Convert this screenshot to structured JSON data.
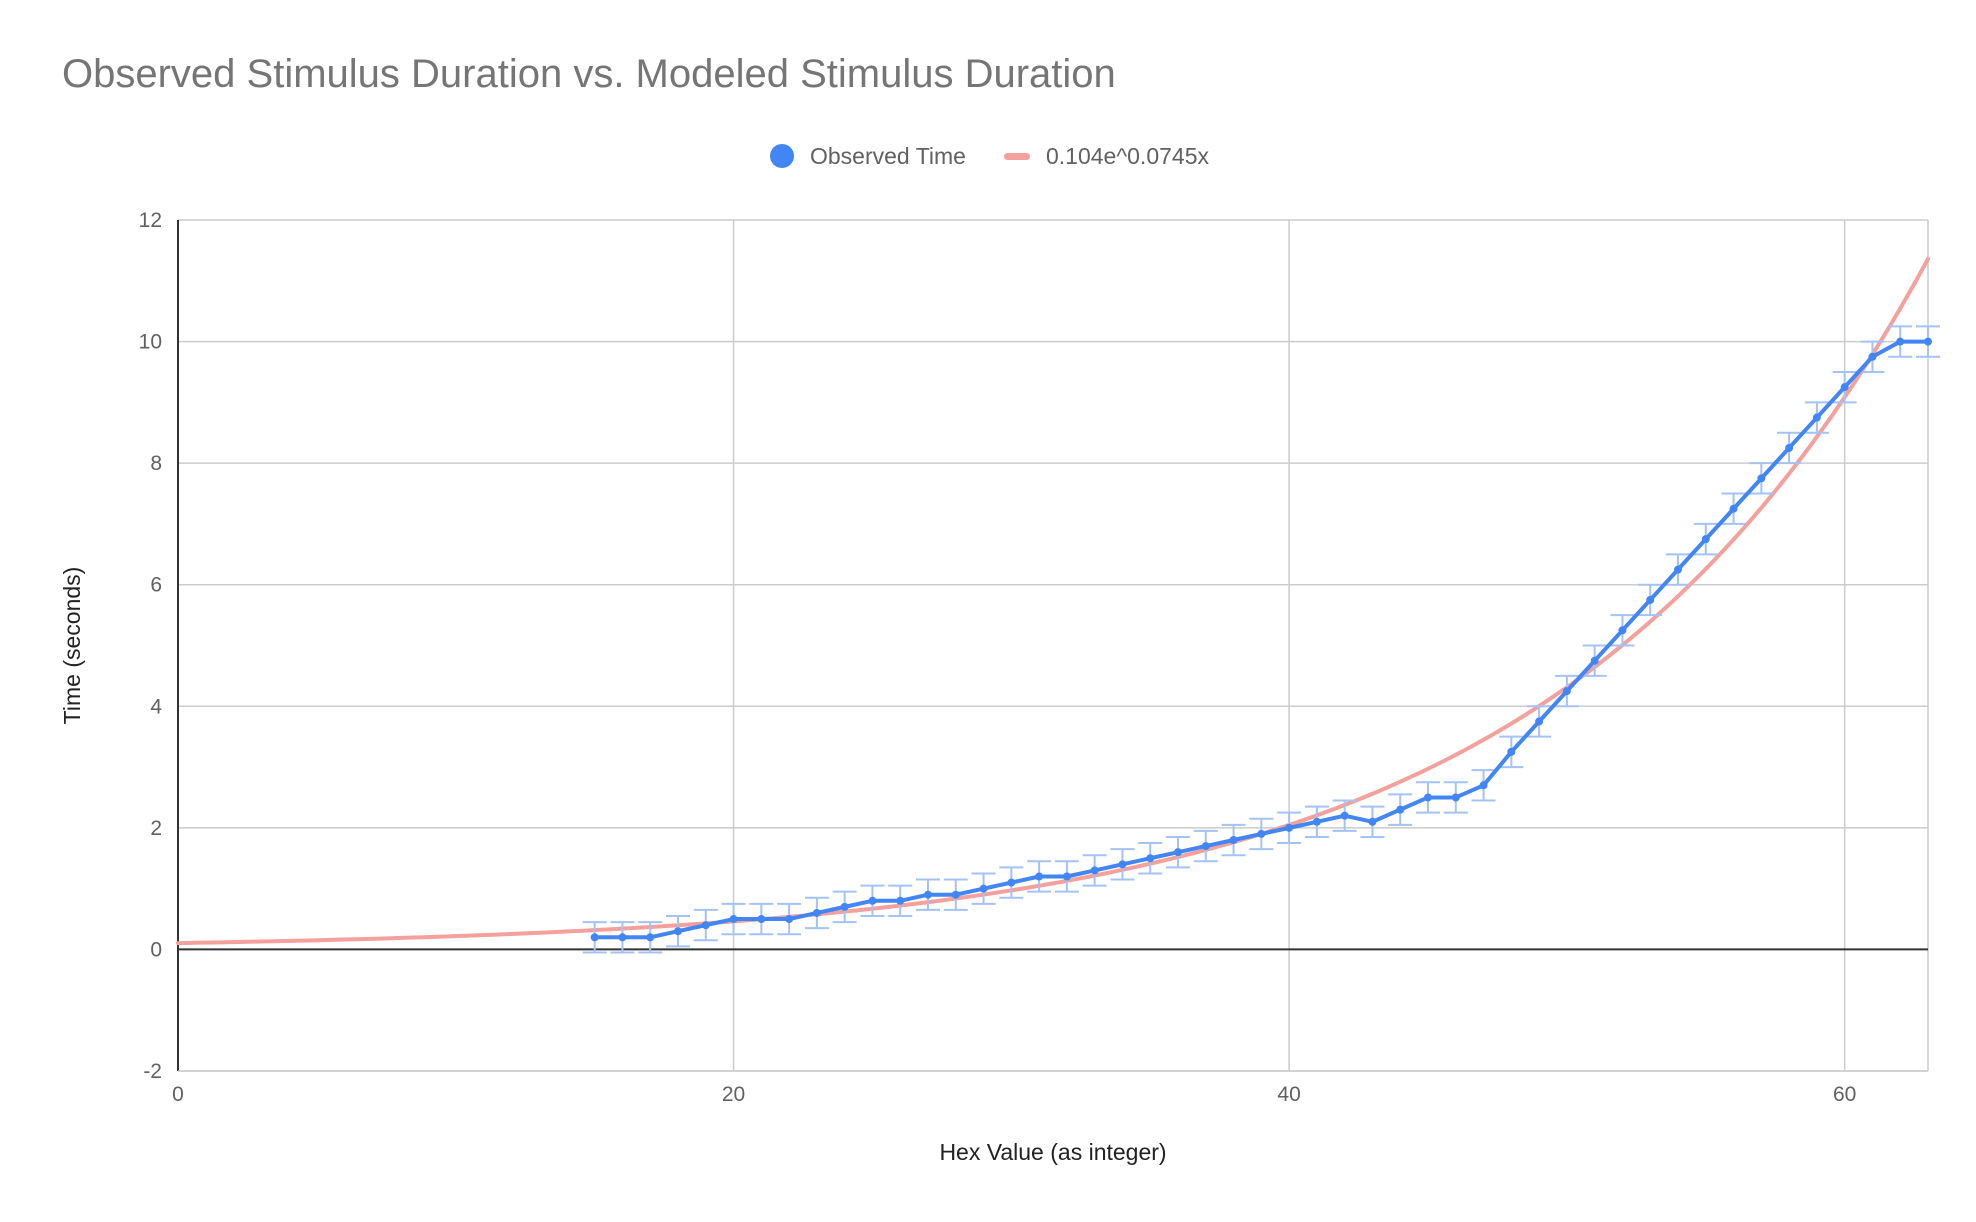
{
  "chart_data": {
    "type": "line",
    "title": "Observed Stimulus Duration vs. Modeled Stimulus Duration",
    "xlabel": "Hex Value (as integer)",
    "ylabel": "Time (seconds)",
    "xlim": [
      0,
      63
    ],
    "ylim": [
      -2,
      12
    ],
    "x_ticks": [
      0,
      20,
      40,
      60
    ],
    "y_ticks": [
      -2,
      0,
      2,
      4,
      6,
      8,
      10,
      12
    ],
    "grid": true,
    "legend_position": "top",
    "series": [
      {
        "name": "Observed Time",
        "kind": "line-with-points",
        "color": "#4285f4",
        "error_bar": 0.25,
        "x": [
          15,
          16,
          17,
          18,
          19,
          20,
          21,
          22,
          23,
          24,
          25,
          26,
          27,
          28,
          29,
          30,
          31,
          32,
          33,
          34,
          35,
          36,
          37,
          38,
          39,
          40,
          41,
          42,
          43,
          44,
          45,
          46,
          47,
          48,
          49,
          50,
          51,
          52,
          53,
          54,
          55,
          56,
          57,
          58,
          59,
          60,
          61,
          62,
          63
        ],
        "y": [
          0.2,
          0.2,
          0.2,
          0.3,
          0.4,
          0.5,
          0.5,
          0.5,
          0.6,
          0.7,
          0.8,
          0.8,
          0.9,
          0.9,
          1.0,
          1.1,
          1.2,
          1.2,
          1.3,
          1.4,
          1.5,
          1.6,
          1.7,
          1.8,
          1.9,
          2.0,
          2.1,
          2.2,
          2.1,
          2.3,
          2.5,
          2.5,
          2.7,
          3.25,
          3.75,
          4.25,
          4.75,
          5.25,
          5.75,
          6.25,
          6.75,
          7.25,
          7.75,
          8.25,
          8.75,
          9.25,
          9.75,
          10.0,
          10.0
        ]
      },
      {
        "name": "0.104e^0.0745x",
        "kind": "trendline",
        "color": "#f4a09c",
        "coefficient": 0.104,
        "exponent": 0.0745
      }
    ]
  }
}
